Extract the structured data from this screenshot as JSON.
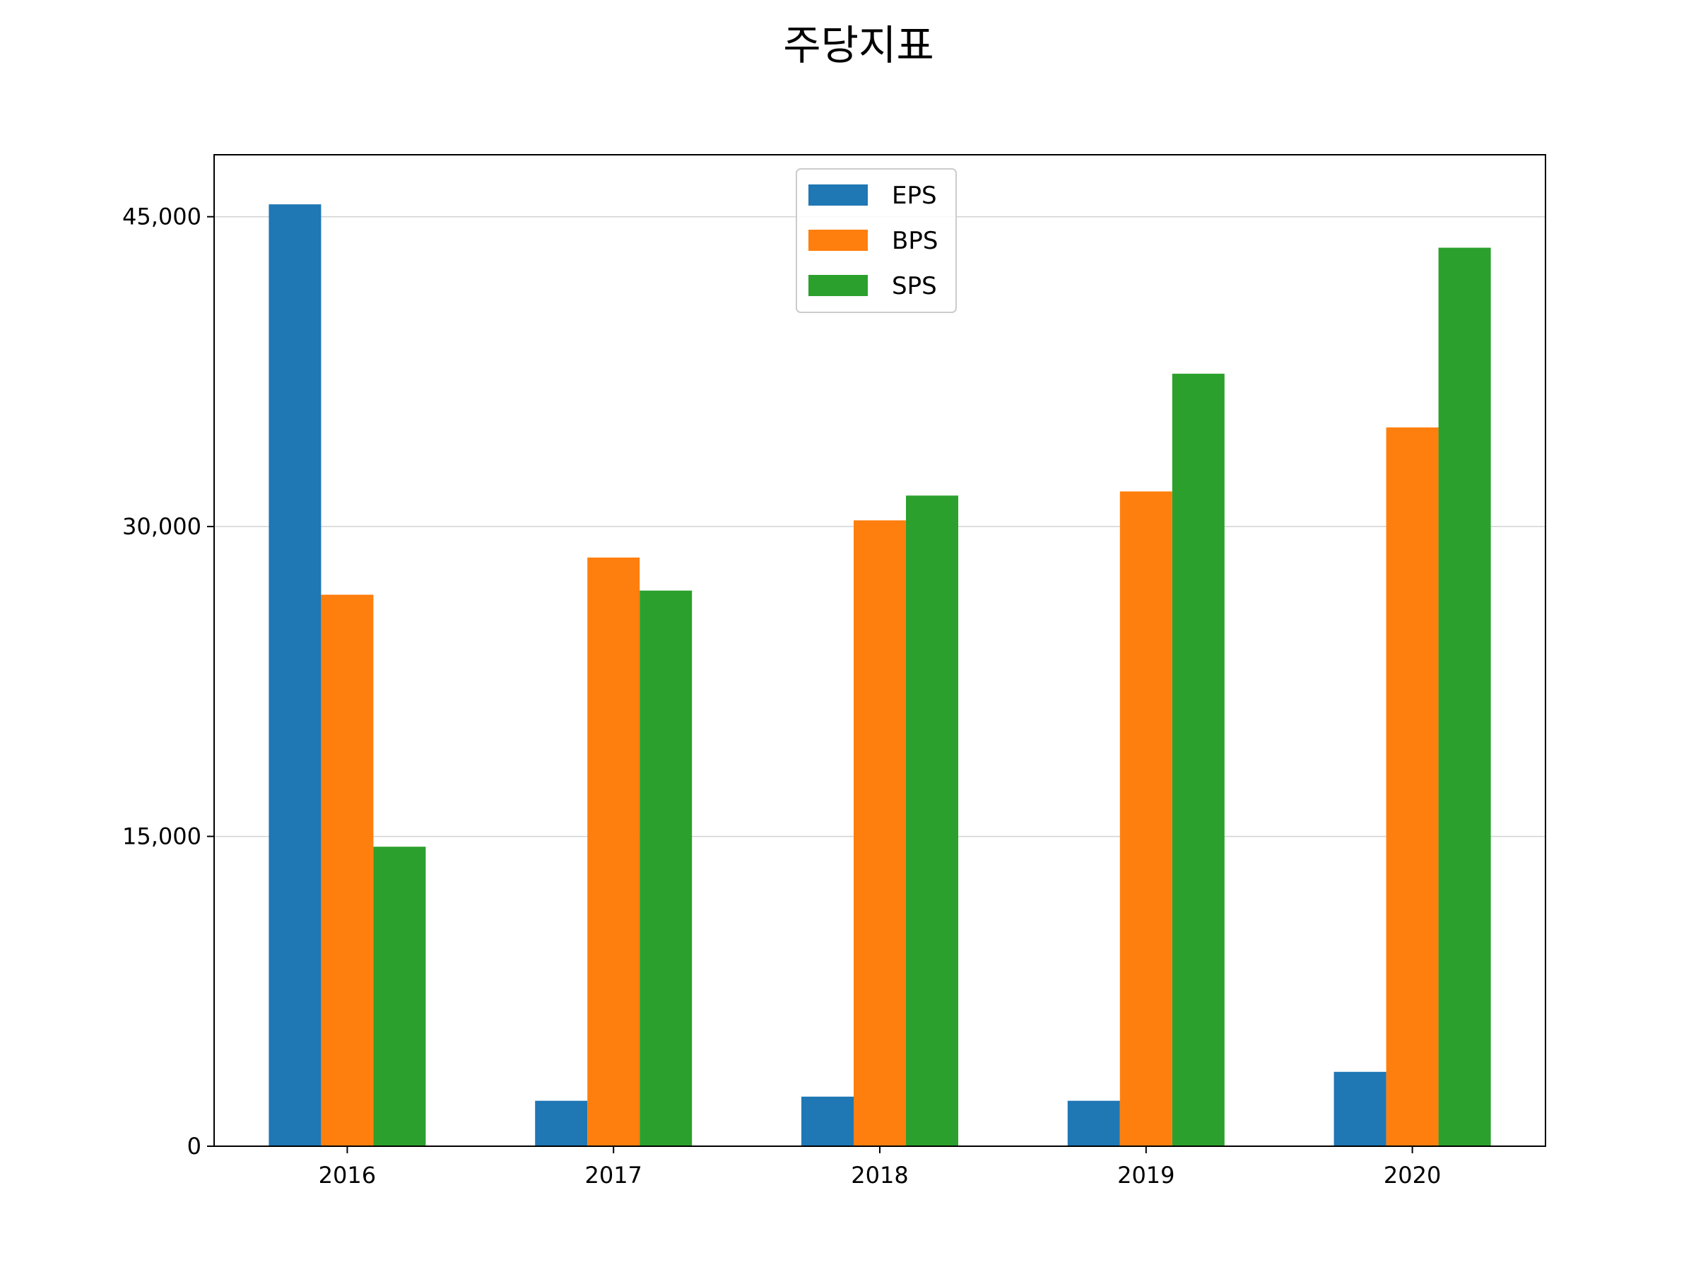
{
  "chart_data": {
    "type": "bar",
    "title": "주당지표",
    "xlabel": "",
    "ylabel": "",
    "categories": [
      "2016",
      "2017",
      "2018",
      "2019",
      "2020"
    ],
    "series": [
      {
        "name": "EPS",
        "color": "#1f77b4",
        "values": [
          45600,
          2200,
          2400,
          2200,
          3600
        ]
      },
      {
        "name": "BPS",
        "color": "#ff7f0e",
        "values": [
          26700,
          28500,
          30300,
          31700,
          34800
        ]
      },
      {
        "name": "SPS",
        "color": "#2ca02c",
        "values": [
          14500,
          26900,
          31500,
          37400,
          43500
        ]
      }
    ],
    "ylim": [
      0,
      48000
    ],
    "yticks": [
      0,
      15000,
      30000,
      45000
    ],
    "ytick_labels": [
      "0",
      "15,000",
      "30,000",
      "45,000"
    ],
    "grid": {
      "axis": "y",
      "on": true,
      "color": "#d3d3d3"
    },
    "legend": {
      "location": "upper center"
    },
    "frame_color": "#000000"
  }
}
